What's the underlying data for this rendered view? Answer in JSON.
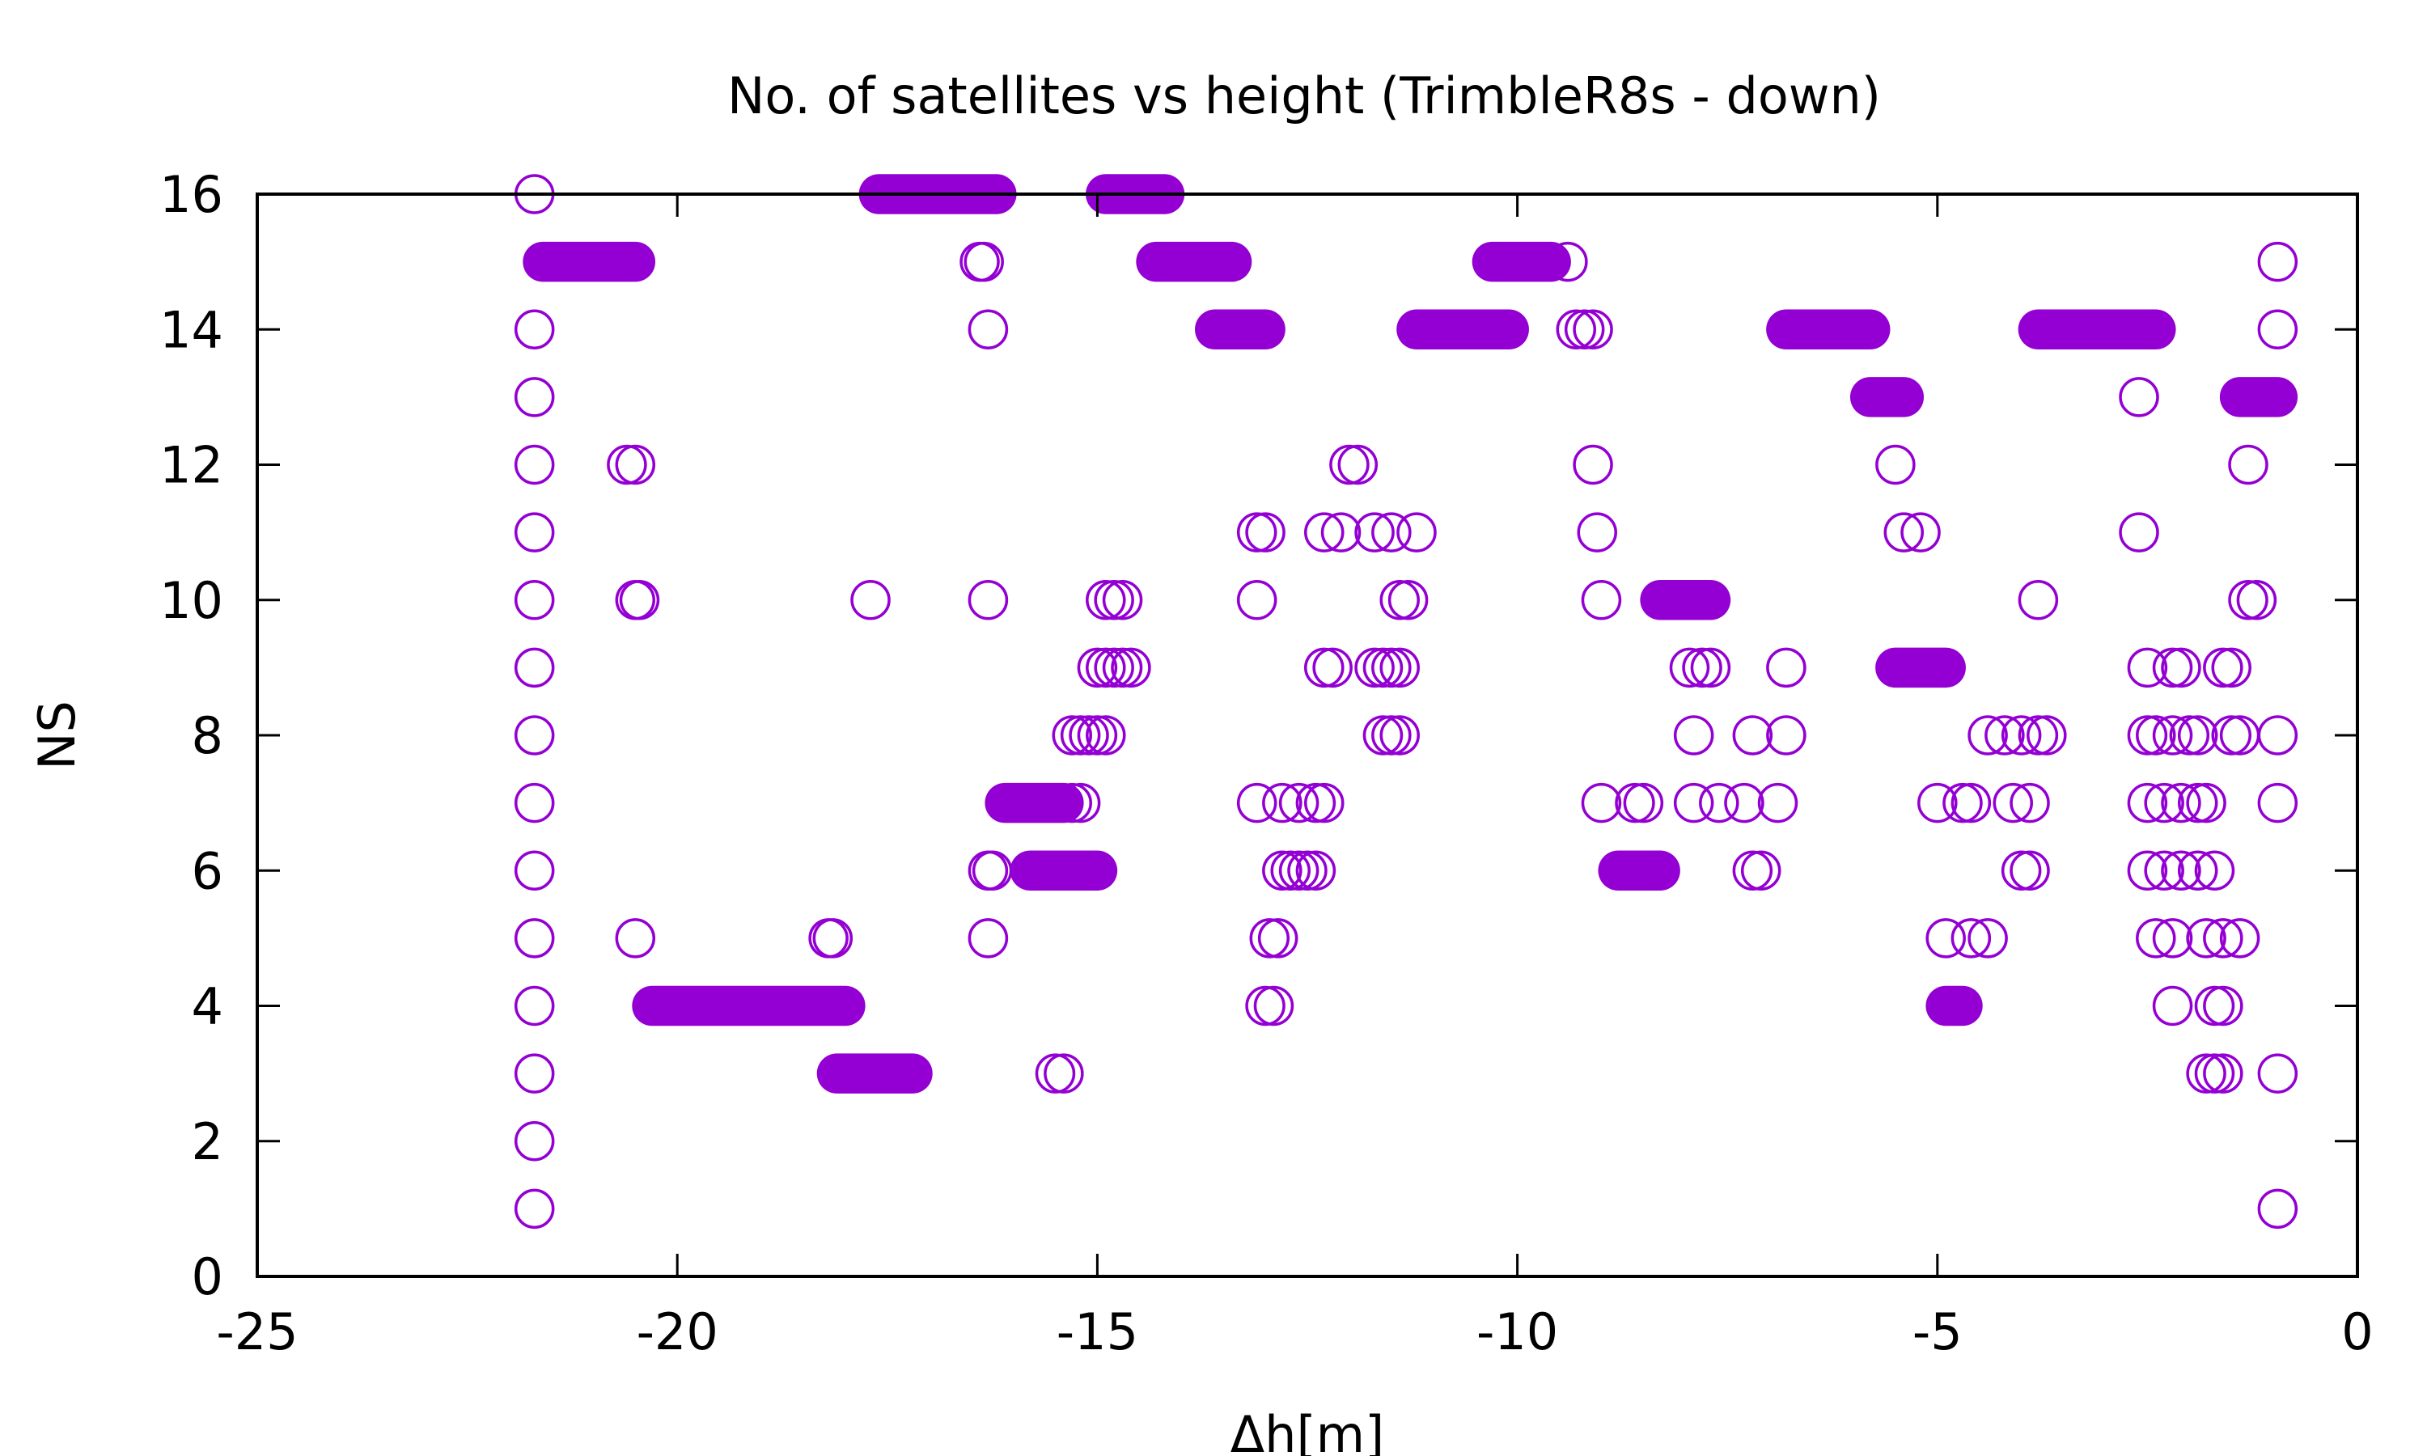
{
  "chart_data": {
    "type": "scatter",
    "title": "No. of satellites vs height (TrimbleR8s - down)",
    "xlabel": "Δh[m]",
    "ylabel": "NS",
    "xlim": [
      -25,
      0
    ],
    "ylim": [
      0,
      16
    ],
    "xticks": [
      -25,
      -20,
      -15,
      -10,
      -5,
      0
    ],
    "yticks": [
      0,
      2,
      4,
      6,
      8,
      10,
      12,
      14,
      16
    ],
    "xtick_labels": [
      "-25",
      "-20",
      "-15",
      "-10",
      "-5",
      "0"
    ],
    "ytick_labels": [
      "0",
      "2",
      "4",
      "6",
      "8",
      "10",
      "12",
      "14",
      "16"
    ],
    "marker": "open-circle",
    "color": "#9400D3",
    "grid": false,
    "legend": "none",
    "series": [
      {
        "points": [
          [
            -21.7,
            16
          ],
          [
            -21.7,
            14
          ],
          [
            -21.7,
            13
          ],
          [
            -21.7,
            12
          ],
          [
            -21.7,
            11
          ],
          [
            -21.7,
            10
          ],
          [
            -21.7,
            9
          ],
          [
            -21.7,
            8
          ],
          [
            -21.7,
            7
          ],
          [
            -21.7,
            6
          ],
          [
            -21.7,
            5
          ],
          [
            -21.7,
            4
          ],
          [
            -21.7,
            3
          ],
          [
            -21.7,
            2
          ],
          [
            -21.7,
            1
          ],
          [
            -20.6,
            12
          ],
          [
            -20.5,
            12
          ],
          [
            -20.5,
            10
          ],
          [
            -20.45,
            10
          ],
          [
            -20.5,
            5
          ],
          [
            -18.2,
            5
          ],
          [
            -18.15,
            5
          ],
          [
            -17.7,
            10
          ],
          [
            -16.4,
            15
          ],
          [
            -16.35,
            15
          ],
          [
            -16.3,
            14
          ],
          [
            -16.3,
            10
          ],
          [
            -16.3,
            6
          ],
          [
            -16.25,
            6
          ],
          [
            -16.3,
            5
          ],
          [
            -15.5,
            3
          ],
          [
            -15.4,
            3
          ],
          [
            -15.3,
            8
          ],
          [
            -15.2,
            8
          ],
          [
            -15.1,
            8
          ],
          [
            -15.0,
            8
          ],
          [
            -14.9,
            8
          ],
          [
            -15.3,
            7
          ],
          [
            -15.2,
            7
          ],
          [
            -14.9,
            10
          ],
          [
            -14.8,
            10
          ],
          [
            -14.7,
            10
          ],
          [
            -15.0,
            9
          ],
          [
            -14.9,
            9
          ],
          [
            -14.8,
            9
          ],
          [
            -14.7,
            9
          ],
          [
            -14.6,
            9
          ],
          [
            -13.1,
            11
          ],
          [
            -13.0,
            11
          ],
          [
            -13.1,
            10
          ],
          [
            -13.1,
            7
          ],
          [
            -12.8,
            7
          ],
          [
            -12.6,
            7
          ],
          [
            -12.4,
            7
          ],
          [
            -12.3,
            7
          ],
          [
            -12.8,
            6
          ],
          [
            -12.7,
            6
          ],
          [
            -12.6,
            6
          ],
          [
            -12.5,
            6
          ],
          [
            -12.4,
            6
          ],
          [
            -12.95,
            5
          ],
          [
            -12.85,
            5
          ],
          [
            -13.0,
            4
          ],
          [
            -12.9,
            4
          ],
          [
            -12.3,
            11
          ],
          [
            -12.1,
            11
          ],
          [
            -11.7,
            11
          ],
          [
            -11.5,
            11
          ],
          [
            -11.2,
            11
          ],
          [
            -12.0,
            12
          ],
          [
            -11.9,
            12
          ],
          [
            -12.3,
            9
          ],
          [
            -12.2,
            9
          ],
          [
            -11.7,
            9
          ],
          [
            -11.6,
            9
          ],
          [
            -11.5,
            9
          ],
          [
            -11.4,
            9
          ],
          [
            -11.6,
            8
          ],
          [
            -11.5,
            8
          ],
          [
            -11.4,
            8
          ],
          [
            -11.4,
            10
          ],
          [
            -11.3,
            10
          ],
          [
            -9.4,
            15
          ],
          [
            -9.3,
            14
          ],
          [
            -9.2,
            14
          ],
          [
            -9.1,
            14
          ],
          [
            -9.1,
            12
          ],
          [
            -9.05,
            11
          ],
          [
            -9.0,
            10
          ],
          [
            -9.0,
            7
          ],
          [
            -8.6,
            7
          ],
          [
            -8.5,
            7
          ],
          [
            -7.95,
            9
          ],
          [
            -7.8,
            9
          ],
          [
            -7.7,
            9
          ],
          [
            -7.9,
            8
          ],
          [
            -7.2,
            8
          ],
          [
            -6.8,
            8
          ],
          [
            -7.9,
            7
          ],
          [
            -7.6,
            7
          ],
          [
            -7.3,
            7
          ],
          [
            -6.9,
            7
          ],
          [
            -7.2,
            6
          ],
          [
            -7.1,
            6
          ],
          [
            -6.8,
            9
          ],
          [
            -5.5,
            12
          ],
          [
            -5.4,
            11
          ],
          [
            -5.2,
            11
          ],
          [
            -5.0,
            7
          ],
          [
            -4.9,
            5
          ],
          [
            -4.6,
            5
          ],
          [
            -4.4,
            5
          ],
          [
            -4.7,
            7
          ],
          [
            -4.6,
            7
          ],
          [
            -4.1,
            7
          ],
          [
            -3.9,
            7
          ],
          [
            -4.4,
            8
          ],
          [
            -4.2,
            8
          ],
          [
            -4.0,
            8
          ],
          [
            -3.8,
            8
          ],
          [
            -3.7,
            8
          ],
          [
            -4.0,
            6
          ],
          [
            -3.9,
            6
          ],
          [
            -3.8,
            10
          ],
          [
            -2.6,
            13
          ],
          [
            -2.6,
            11
          ],
          [
            -2.5,
            9
          ],
          [
            -2.2,
            9
          ],
          [
            -2.1,
            9
          ],
          [
            -1.6,
            9
          ],
          [
            -1.5,
            9
          ],
          [
            -2.5,
            8
          ],
          [
            -2.4,
            8
          ],
          [
            -2.2,
            8
          ],
          [
            -2.0,
            8
          ],
          [
            -1.9,
            8
          ],
          [
            -1.5,
            8
          ],
          [
            -1.4,
            8
          ],
          [
            -2.5,
            7
          ],
          [
            -2.3,
            7
          ],
          [
            -2.1,
            7
          ],
          [
            -1.9,
            7
          ],
          [
            -1.8,
            7
          ],
          [
            -2.5,
            6
          ],
          [
            -2.3,
            6
          ],
          [
            -2.1,
            6
          ],
          [
            -1.9,
            6
          ],
          [
            -1.7,
            6
          ],
          [
            -2.4,
            5
          ],
          [
            -2.2,
            5
          ],
          [
            -1.8,
            5
          ],
          [
            -1.6,
            5
          ],
          [
            -1.4,
            5
          ],
          [
            -2.2,
            4
          ],
          [
            -1.7,
            4
          ],
          [
            -1.6,
            4
          ],
          [
            -1.8,
            3
          ],
          [
            -1.7,
            3
          ],
          [
            -1.6,
            3
          ],
          [
            -1.3,
            12
          ],
          [
            -1.3,
            10
          ],
          [
            -1.2,
            10
          ],
          [
            -0.95,
            15
          ],
          [
            -0.95,
            14
          ],
          [
            -0.95,
            8
          ],
          [
            -0.95,
            7
          ],
          [
            -0.95,
            3
          ],
          [
            -0.95,
            1
          ]
        ],
        "segments": [
          [
            -21.6,
            -20.5,
            15
          ],
          [
            -20.3,
            -18.0,
            4
          ],
          [
            -18.1,
            -17.2,
            3
          ],
          [
            -17.6,
            -16.2,
            16
          ],
          [
            -16.1,
            -15.4,
            7
          ],
          [
            -15.8,
            -15.0,
            6
          ],
          [
            -14.9,
            -14.2,
            16
          ],
          [
            -14.3,
            -13.4,
            15
          ],
          [
            -13.6,
            -13.0,
            14
          ],
          [
            -11.2,
            -10.1,
            14
          ],
          [
            -10.3,
            -9.6,
            15
          ],
          [
            -8.8,
            -8.3,
            6
          ],
          [
            -8.3,
            -7.7,
            10
          ],
          [
            -6.8,
            -5.8,
            14
          ],
          [
            -5.8,
            -5.4,
            13
          ],
          [
            -5.5,
            -4.9,
            9
          ],
          [
            -4.9,
            -4.7,
            4
          ],
          [
            -3.8,
            -2.4,
            14
          ],
          [
            -1.4,
            -0.95,
            13
          ]
        ]
      }
    ]
  }
}
